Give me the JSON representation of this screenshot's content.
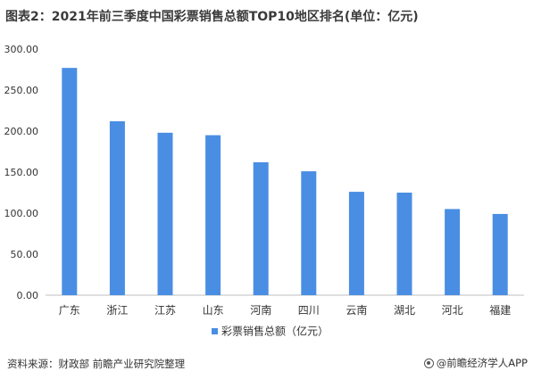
{
  "chart_data": {
    "type": "bar",
    "title": "图表2：2021年前三季度中国彩票销售总额TOP10地区排名(单位：亿元)",
    "categories": [
      "广东",
      "浙江",
      "江苏",
      "山东",
      "河南",
      "四川",
      "云南",
      "湖北",
      "河北",
      "福建"
    ],
    "series": [
      {
        "name": "彩票销售总额（亿元）",
        "values": [
          277,
          212,
          198,
          195,
          162,
          151,
          126,
          125,
          105,
          99
        ]
      }
    ],
    "ylim": [
      0,
      300
    ],
    "yticks": [
      "0.00",
      "50.00",
      "100.00",
      "150.00",
      "200.00",
      "250.00",
      "300.00"
    ],
    "grid": false,
    "legend_position": "bottom",
    "bar_color": "#4a8ee3"
  },
  "footer": {
    "source": "资料来源：财政部 前瞻产业研究院整理",
    "brand": "@前瞻经济学人APP"
  }
}
